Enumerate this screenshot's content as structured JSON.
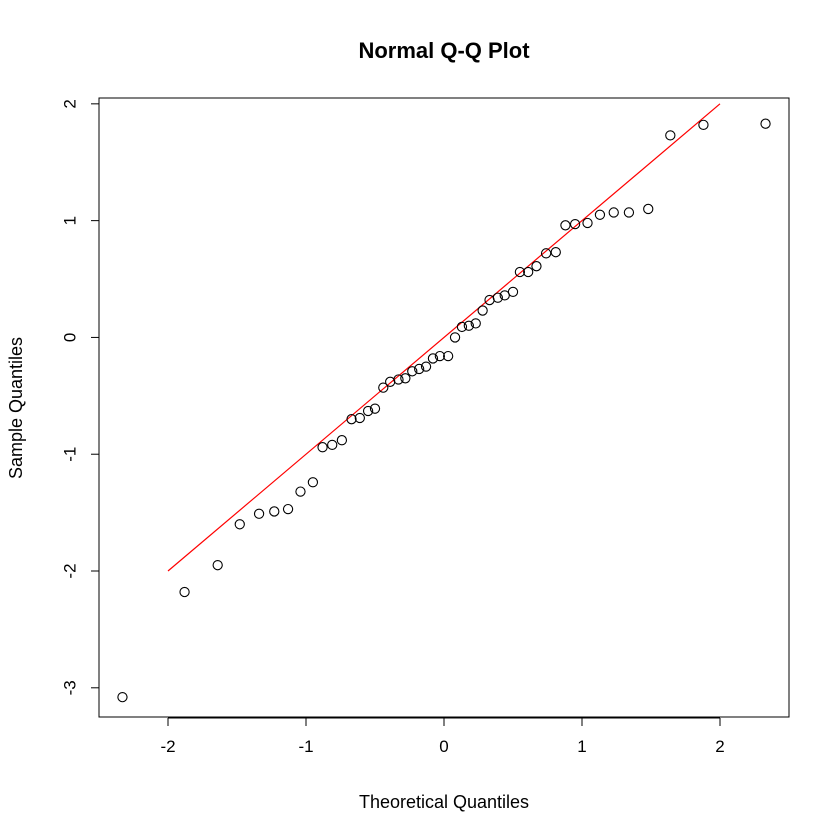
{
  "chart_data": {
    "type": "scatter",
    "title": "Normal Q-Q Plot",
    "xlabel": "Theoretical Quantiles",
    "ylabel": "Sample Quantiles",
    "xlim": [
      -2.5,
      2.5
    ],
    "ylim": [
      -3.25,
      2.05
    ],
    "x_ticks": [
      -2,
      -1,
      0,
      1,
      2
    ],
    "x_tick_labels": [
      "-2",
      "-1",
      "0",
      "1",
      "2"
    ],
    "y_ticks": [
      -3,
      -2,
      -1,
      0,
      1,
      2
    ],
    "y_tick_labels": [
      "-3",
      "-2",
      "-1",
      "0",
      "1",
      "2"
    ],
    "grid": false,
    "point_color": "#000000",
    "line_color": "#ff0000",
    "qq_line": {
      "x": [
        -2.0,
        2.0
      ],
      "y": [
        -2.0,
        2.0
      ]
    },
    "series": [
      {
        "x": [
          -2.33,
          -1.88,
          -1.64,
          -1.48,
          -1.34,
          -1.23,
          -1.13,
          -1.04,
          -0.95,
          -0.88,
          -0.81,
          -0.74,
          -0.67,
          -0.61,
          -0.55,
          -0.5,
          -0.44,
          -0.39,
          -0.33,
          -0.28,
          -0.23,
          -0.18,
          -0.13,
          -0.08,
          -0.03,
          0.03,
          0.08,
          0.13,
          0.18,
          0.23,
          0.28,
          0.33,
          0.39,
          0.44,
          0.5,
          0.55,
          0.61,
          0.67,
          0.74,
          0.81,
          0.88,
          0.95,
          1.04,
          1.13,
          1.23,
          1.34,
          1.48,
          1.64,
          1.88,
          2.33
        ],
        "y": [
          -3.08,
          -2.18,
          -1.95,
          -1.6,
          -1.51,
          -1.49,
          -1.47,
          -1.32,
          -1.24,
          -0.94,
          -0.92,
          -0.88,
          -0.7,
          -0.69,
          -0.63,
          -0.61,
          -0.43,
          -0.38,
          -0.36,
          -0.35,
          -0.29,
          -0.27,
          -0.25,
          -0.18,
          -0.16,
          -0.16,
          0.0,
          0.09,
          0.1,
          0.12,
          0.23,
          0.32,
          0.34,
          0.36,
          0.39,
          0.56,
          0.56,
          0.61,
          0.72,
          0.73,
          0.96,
          0.97,
          0.98,
          1.05,
          1.07,
          1.07,
          1.1,
          1.73,
          1.82,
          1.83
        ]
      }
    ]
  }
}
